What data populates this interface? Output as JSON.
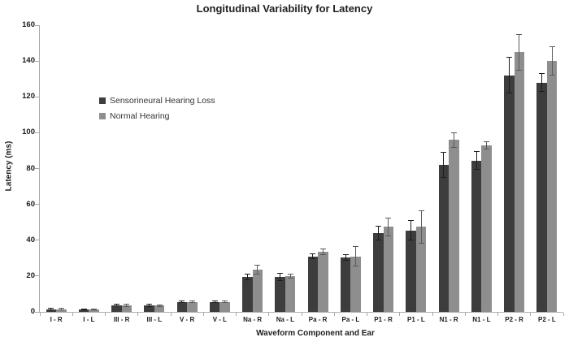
{
  "chart_data": {
    "type": "bar",
    "title": "Longitudinal Variability for Latency",
    "xlabel": "Waveform Component and Ear",
    "ylabel": "Latency (ms)",
    "ylim": [
      0,
      160
    ],
    "ytick_step": 20,
    "grid": false,
    "legend_position": "inside-upper-left",
    "error_bars": true,
    "categories": [
      "I - R",
      "I - L",
      "III - R",
      "III - L",
      "V - R",
      "V - L",
      "Na - R",
      "Na - L",
      "Pa - R",
      "Pa - L",
      "P1 - R",
      "P1 - L",
      "N1 - R",
      "N1 - L",
      "P2 - R",
      "P2 - L"
    ],
    "series": [
      {
        "name": "Sensorineural Hearing Loss",
        "color": "#3d3d3d",
        "error_color": "#1c1c1c",
        "values": [
          1.5,
          1.4,
          3.7,
          3.6,
          5.6,
          5.5,
          19.5,
          19.5,
          31,
          30.5,
          44,
          45.5,
          82,
          84.5,
          132,
          128
        ],
        "errors": [
          0.4,
          0.4,
          0.5,
          0.5,
          0.4,
          0.4,
          1.5,
          2,
          1.5,
          1.5,
          4,
          5.5,
          7,
          5,
          10,
          5
        ]
      },
      {
        "name": "Normal Hearing",
        "color": "#8e8e8e",
        "error_color": "#5a5a5a",
        "values": [
          1.5,
          1.4,
          3.6,
          3.5,
          5.6,
          5.5,
          23.5,
          20,
          33.5,
          31,
          47.5,
          47.5,
          96,
          93,
          145,
          140
        ],
        "errors": [
          0.4,
          0.4,
          0.5,
          0.5,
          0.4,
          0.4,
          2.5,
          1,
          1.5,
          5.5,
          5,
          9,
          4,
          2,
          10,
          8
        ]
      }
    ]
  }
}
